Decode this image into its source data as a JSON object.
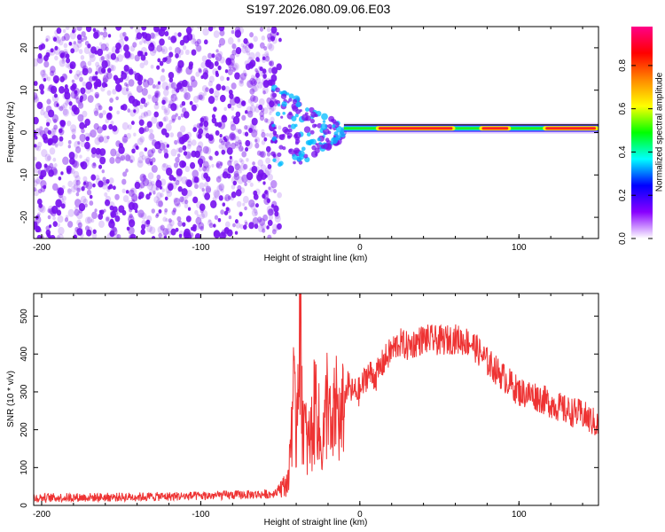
{
  "figure": {
    "title": "S197.2026.080.09.06.E03"
  },
  "colors": {
    "line": "#ee3333",
    "dots": "#7711ee",
    "axis": "#000000"
  },
  "colorbar": {
    "label": "Normalized spectral amplitude",
    "ticks": [
      "0.0",
      "0.2",
      "0.4",
      "0.6",
      "0.8"
    ],
    "tick_values": [
      0.0,
      0.2,
      0.4,
      0.6,
      0.8
    ],
    "range": [
      0,
      0.98
    ],
    "colormap": [
      "#ffffff",
      "#8800ff",
      "#0000ff",
      "#00ffff",
      "#00ff00",
      "#ffff00",
      "#ff8800",
      "#ff0000",
      "#ff0088"
    ]
  },
  "chart_data": [
    {
      "type": "heatmap",
      "title": "",
      "xlabel": "Height of straight line (km)",
      "ylabel": "Frequency (Hz)",
      "xlim": [
        -205,
        150
      ],
      "ylim": [
        -25,
        25
      ],
      "xticks": [
        -200,
        -100,
        0,
        100
      ],
      "xtick_labels": [
        "-200",
        "-100",
        "0",
        "100"
      ],
      "yticks": [
        -20,
        -10,
        0,
        10,
        20
      ],
      "ytick_labels": [
        "-20",
        "-10",
        "0",
        "10",
        "20"
      ],
      "noise_region": {
        "x": [
          -205,
          -50
        ],
        "y": [
          -25,
          25
        ]
      },
      "transition_region": {
        "x": [
          -55,
          -10
        ],
        "y": [
          -10,
          10
        ]
      },
      "signal_band": {
        "x": [
          -10,
          150
        ],
        "frequency_hz": 1.0,
        "peak_amplitude": 0.9,
        "bright_segments": [
          [
            10,
            60
          ],
          [
            75,
            95
          ],
          [
            115,
            150
          ]
        ]
      }
    },
    {
      "type": "line",
      "title": "",
      "xlabel": "Height of straight line (km)",
      "ylabel": "SNR (10 * v/v)",
      "xlim": [
        -205,
        150
      ],
      "ylim": [
        0,
        560
      ],
      "xticks": [
        -200,
        -100,
        0,
        100
      ],
      "xtick_labels": [
        "-200",
        "-100",
        "0",
        "100"
      ],
      "yticks": [
        0,
        100,
        200,
        300,
        400,
        500
      ],
      "ytick_labels": [
        "0",
        "100",
        "200",
        "300",
        "400",
        "500"
      ],
      "series": [
        {
          "x": [
            -205,
            -150,
            -100,
            -55,
            -45,
            -42,
            -40,
            -38,
            -36,
            -33,
            -30,
            -27,
            -25,
            -22,
            -20,
            -18,
            -15,
            -12,
            -8,
            -5,
            0,
            5,
            10,
            15,
            20,
            25,
            30,
            40,
            50,
            60,
            70,
            80,
            90,
            100,
            110,
            120,
            130,
            140,
            150
          ],
          "y": [
            20,
            22,
            25,
            30,
            60,
            300,
            180,
            560,
            250,
            150,
            200,
            300,
            150,
            200,
            330,
            150,
            280,
            200,
            320,
            300,
            300,
            350,
            340,
            380,
            410,
            430,
            420,
            440,
            435,
            440,
            430,
            380,
            340,
            300,
            290,
            270,
            250,
            240,
            210
          ],
          "noise": 40
        }
      ]
    }
  ]
}
